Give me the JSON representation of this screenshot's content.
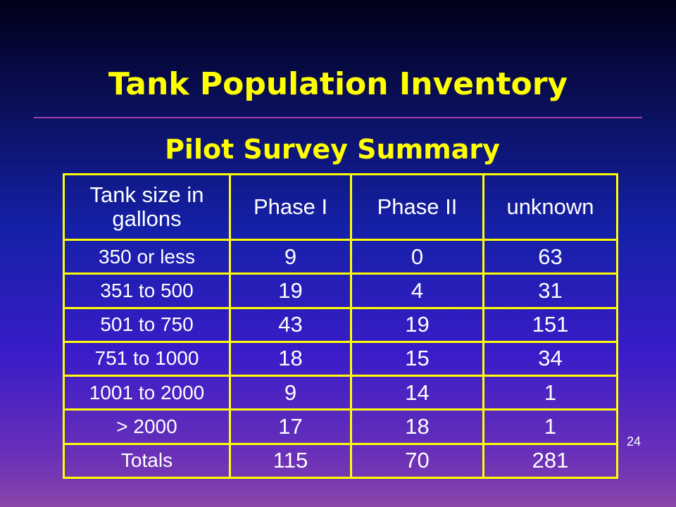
{
  "slide": {
    "title": "Tank Population Inventory",
    "subtitle": "Pilot Survey Summary",
    "page_number": "24",
    "colors": {
      "title_text": "#ffff00",
      "table_border": "#ffff00",
      "table_text": "#ffffff",
      "divider": "#a040a0"
    }
  },
  "table": {
    "headers": [
      "Tank size in gallons",
      "Phase I",
      "Phase II",
      "unknown"
    ],
    "rows": [
      {
        "label": "350 or less",
        "phase1": "9",
        "phase2": "0",
        "unknown": "63"
      },
      {
        "label": "351 to 500",
        "phase1": "19",
        "phase2": "4",
        "unknown": "31"
      },
      {
        "label": "501 to 750",
        "phase1": "43",
        "phase2": "19",
        "unknown": "151"
      },
      {
        "label": "751 to 1000",
        "phase1": "18",
        "phase2": "15",
        "unknown": "34"
      },
      {
        "label": "1001 to 2000",
        "phase1": "9",
        "phase2": "14",
        "unknown": "1"
      },
      {
        "label": "> 2000",
        "phase1": "17",
        "phase2": "18",
        "unknown": "1"
      },
      {
        "label": "Totals",
        "phase1": "115",
        "phase2": "70",
        "unknown": "281"
      }
    ]
  }
}
